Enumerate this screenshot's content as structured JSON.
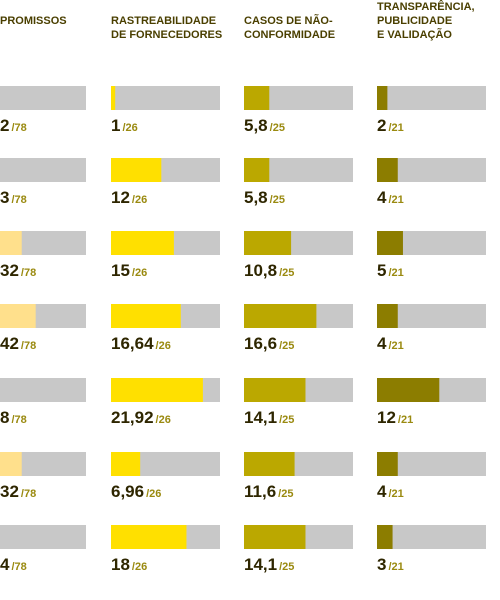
{
  "chart_data": {
    "type": "bar-table",
    "columns": [
      {
        "header": [
          "PROMISSOS"
        ],
        "color": "#ffe08c",
        "max": {
          "value": 78,
          "label": "/78"
        },
        "values": [
          2,
          3,
          32,
          42,
          8,
          32,
          4
        ]
      },
      {
        "header": [
          "RASTREABILIDADE",
          "DE FORNECEDORES"
        ],
        "color": "#ffe000",
        "max": {
          "value": 26,
          "label": "/26"
        },
        "values": [
          1,
          12,
          15,
          16.64,
          21.92,
          6.96,
          18
        ],
        "value_labels": [
          "1",
          "12",
          "15",
          "16,64",
          "21,92",
          "6,96",
          "18"
        ]
      },
      {
        "header": [
          "CASOS DE NÃO-",
          "CONFORMIDADE"
        ],
        "color": "#bba800",
        "max": {
          "value": 25,
          "label": "/25"
        },
        "values": [
          5.8,
          5.8,
          10.8,
          16.6,
          14.1,
          11.6,
          14.1
        ],
        "value_labels": [
          "5,8",
          "5,8",
          "10,8",
          "16,6",
          "14,1",
          "11,6",
          "14,1"
        ]
      },
      {
        "header": [
          "TRANSPARÊNCIA,",
          "PUBLICIDADE",
          "E VALIDAÇÃO"
        ],
        "color": "#8c7d00",
        "max": {
          "value": 21,
          "label": "/21"
        },
        "values": [
          2,
          4,
          5,
          4,
          12,
          4,
          3
        ]
      }
    ]
  }
}
